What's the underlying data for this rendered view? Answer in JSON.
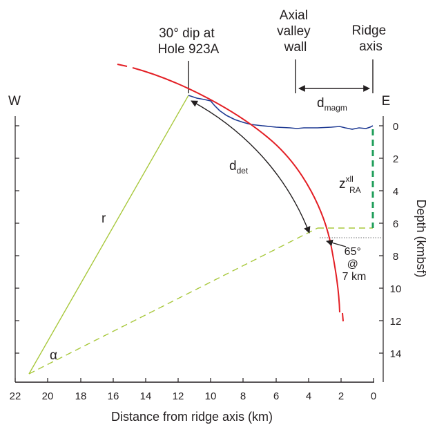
{
  "header": {
    "dip_label_line1": "30° dip at",
    "dip_label_line2": "Hole 923A",
    "valley_label_line1": "Axial",
    "valley_label_line2": "valley",
    "valley_label_line3": "wall",
    "ridge_label_line1": "Ridge",
    "ridge_label_line2": "axis"
  },
  "compass": {
    "west": "W",
    "east": "E"
  },
  "annotations": {
    "d_magm_main": "d",
    "d_magm_sub": "magm",
    "d_det_main": "d",
    "d_det_sub": "det",
    "z_main": "z",
    "z_sup": "xll",
    "z_sub": "RA",
    "r": "r",
    "alpha": "α",
    "dip65_line1": "65°",
    "dip65_line2": "@",
    "dip65_line3": "7 km"
  },
  "axes": {
    "x_title": "Distance from ridge axis (km)",
    "x_ticks": [
      "22",
      "20",
      "18",
      "16",
      "14",
      "12",
      "10",
      "8",
      "6",
      "4",
      "2",
      "0"
    ],
    "y_title": "Depth (kmbsf)",
    "y_ticks": [
      "0",
      "2",
      "4",
      "6",
      "8",
      "10",
      "12",
      "14"
    ]
  },
  "colors": {
    "fault": "#e31e24",
    "seafloor": "#1f3a93",
    "radius": "#a8c83c",
    "moho": "#1f9e5a",
    "ink": "#231f20"
  }
}
